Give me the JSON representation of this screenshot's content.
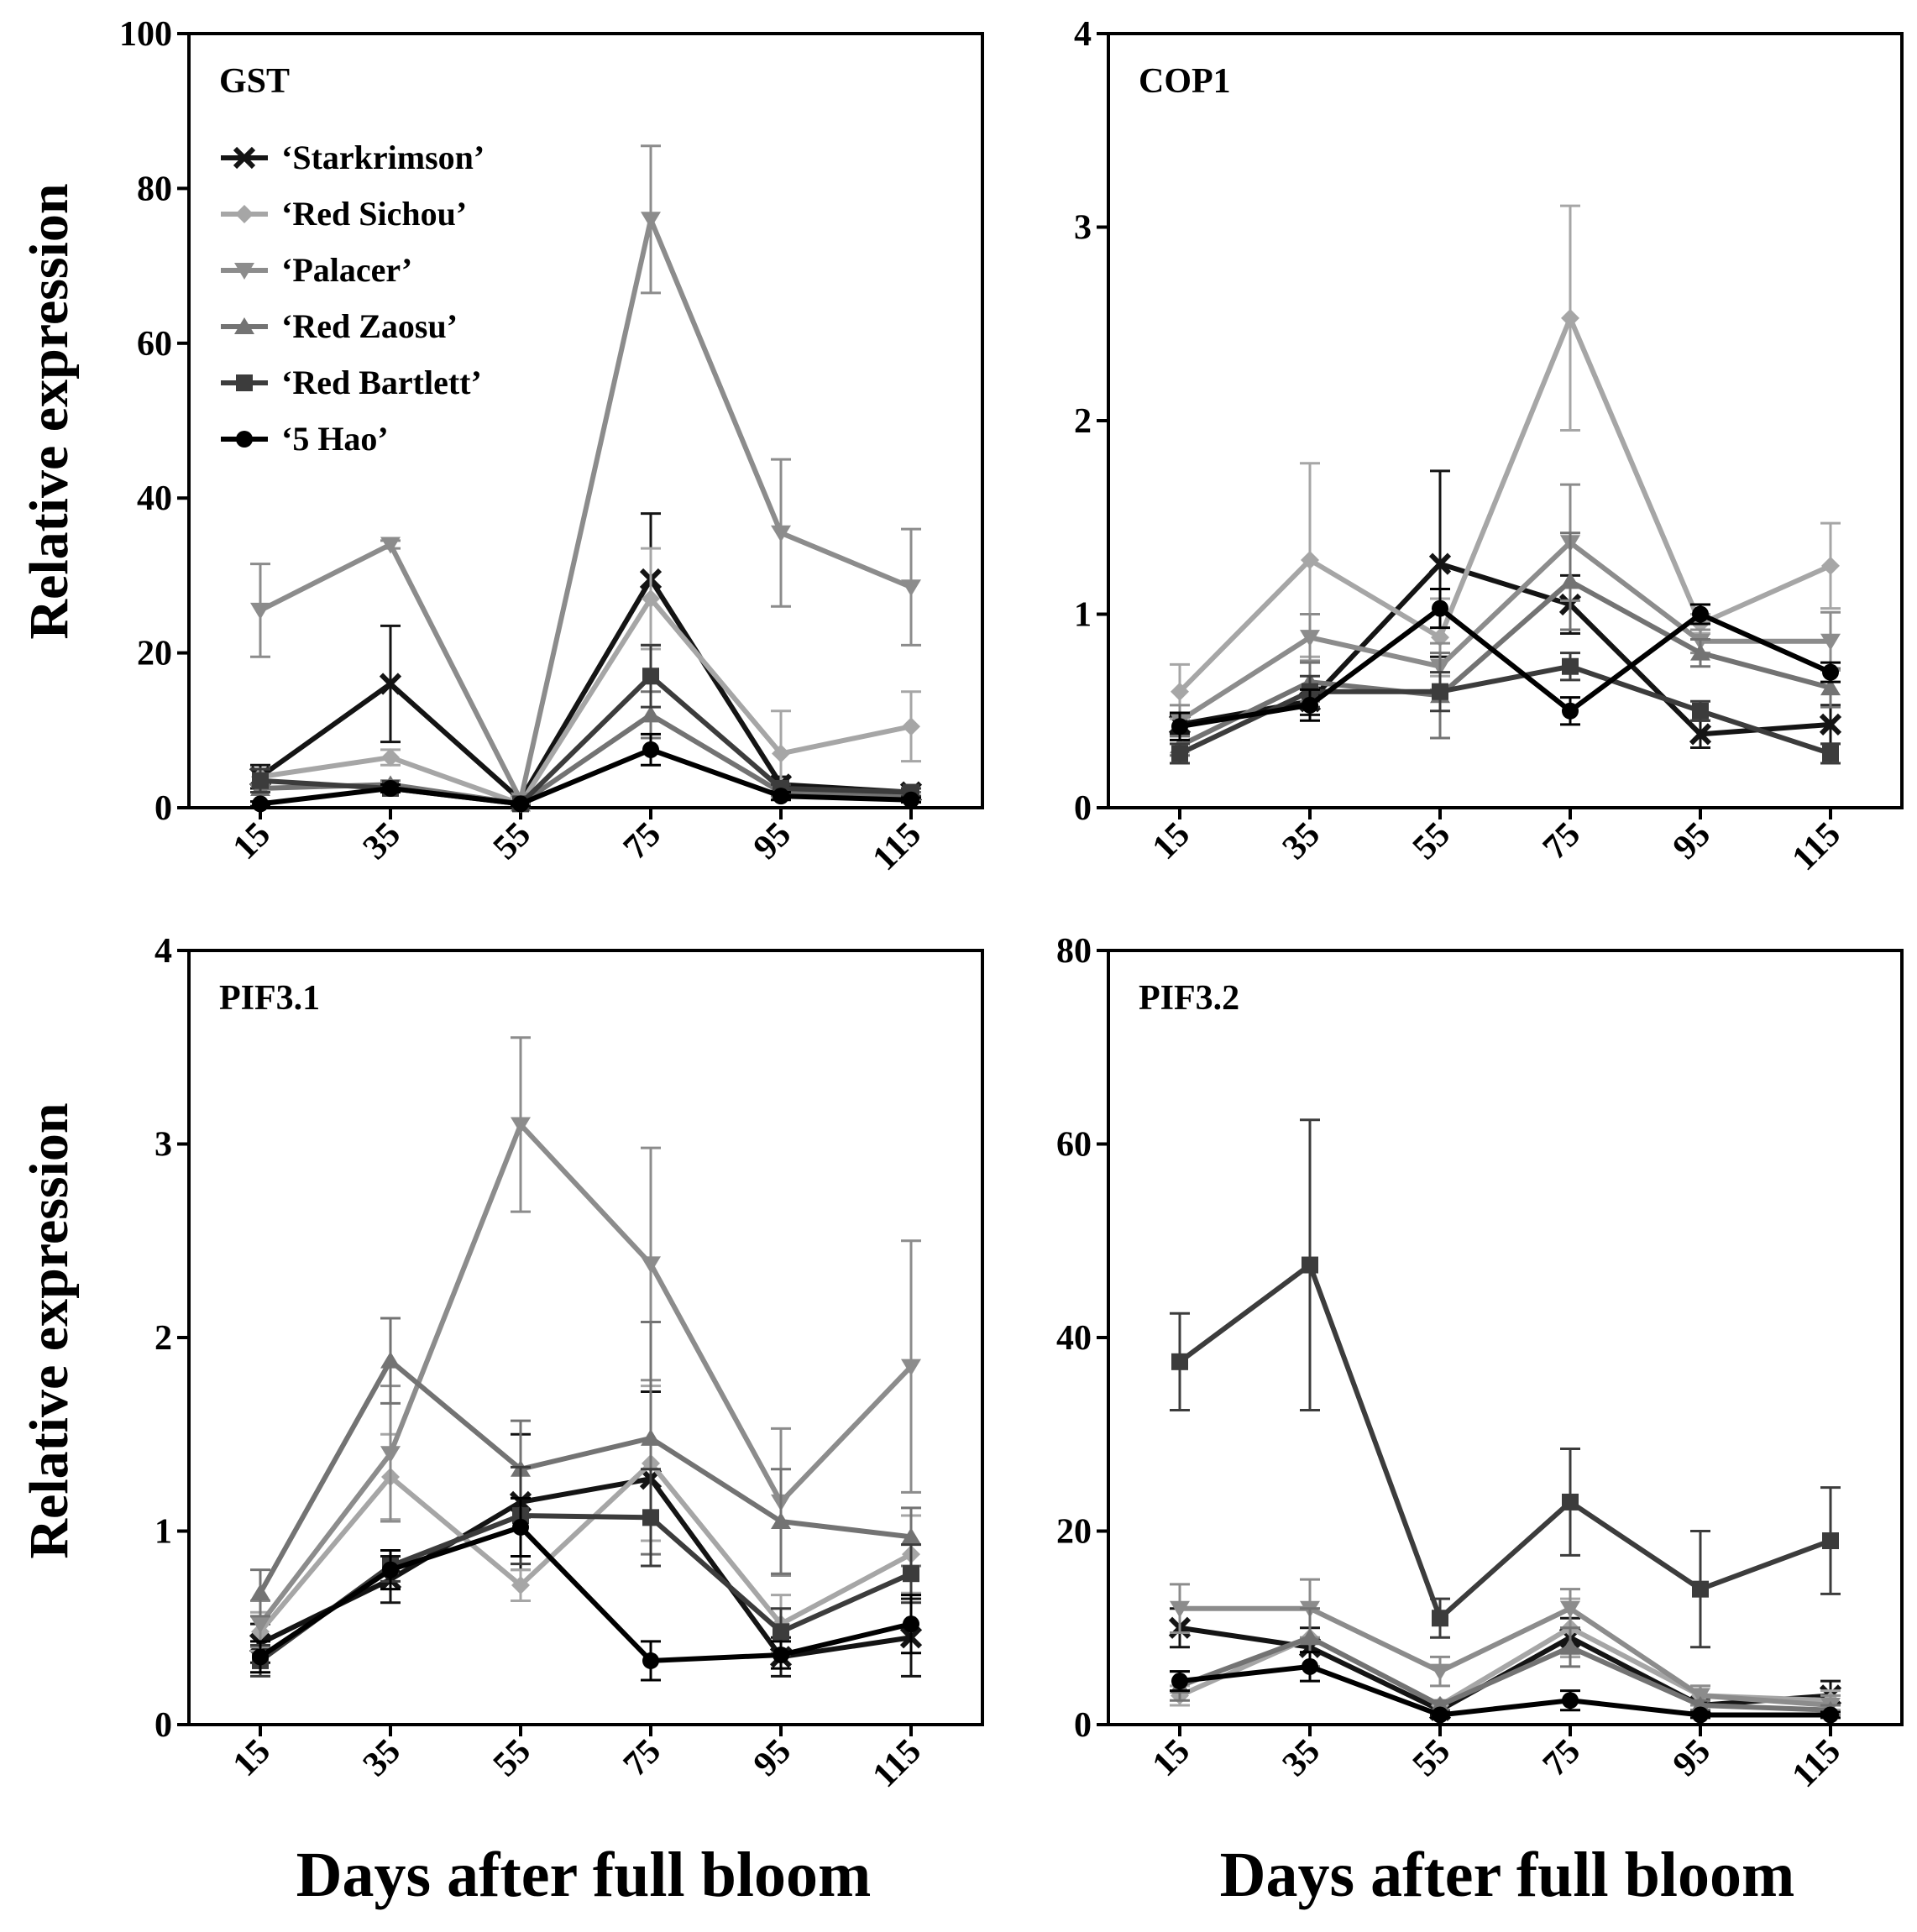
{
  "figure": {
    "ylabel": "Relative expression",
    "xlabel": "Days after full bloom"
  },
  "legend": [
    {
      "label": "‘Starkrimson’",
      "color": "#141414",
      "marker": "x"
    },
    {
      "label": "‘Red Sichou’",
      "color": "#a6a6a6",
      "marker": "diamond"
    },
    {
      "label": "‘Palacer’",
      "color": "#8c8c8c",
      "marker": "triangle-down"
    },
    {
      "label": "‘Red Zaosu’",
      "color": "#737373",
      "marker": "triangle-up"
    },
    {
      "label": "‘Red Bartlett’",
      "color": "#3c3c3c",
      "marker": "square"
    },
    {
      "label": "‘5 Hao’",
      "color": "#000000",
      "marker": "circle"
    }
  ],
  "chart_data": [
    {
      "type": "line",
      "title": "GST",
      "categories": [
        "15",
        "35",
        "55",
        "75",
        "95",
        "115"
      ],
      "ylim": [
        0,
        100
      ],
      "yticks": [
        "0",
        "20",
        "40",
        "60",
        "80",
        "100"
      ],
      "series": [
        {
          "name": "‘Starkrimson’",
          "values": [
            4,
            16,
            1,
            29.5,
            3,
            2
          ],
          "errors": [
            1.5,
            7.5,
            0.5,
            8.5,
            1,
            0.5
          ]
        },
        {
          "name": "‘Red Sichou’",
          "values": [
            4,
            6.5,
            0.5,
            27,
            7,
            10.5
          ],
          "errors": [
            1,
            1,
            0.3,
            6.5,
            5.5,
            4.5
          ]
        },
        {
          "name": "‘Palacer’",
          "values": [
            25.5,
            34,
            1,
            76,
            35.5,
            28.5
          ],
          "errors": [
            6,
            0.5,
            0.5,
            9.5,
            9.5,
            7.5
          ]
        },
        {
          "name": "‘Red Zaosu’",
          "values": [
            2.5,
            3,
            0.5,
            12,
            2,
            1.5
          ],
          "errors": [
            0.5,
            0.5,
            0.3,
            3,
            0.5,
            0.5
          ]
        },
        {
          "name": "‘Red Bartlett’",
          "values": [
            3.5,
            2.5,
            0.5,
            17,
            2.5,
            2
          ],
          "errors": [
            1.5,
            0.5,
            0.3,
            4,
            0.5,
            0.5
          ]
        },
        {
          "name": "‘5 Hao’",
          "values": [
            0.5,
            2.5,
            0.5,
            7.5,
            1.5,
            1
          ],
          "errors": [
            0.3,
            0.5,
            0.3,
            2,
            0.5,
            0.3
          ]
        }
      ]
    },
    {
      "type": "line",
      "title": "COP1",
      "categories": [
        "15",
        "35",
        "55",
        "75",
        "95",
        "115"
      ],
      "ylim": [
        0,
        4
      ],
      "yticks": [
        "0",
        "1",
        "2",
        "3",
        "4"
      ],
      "series": [
        {
          "name": "‘Starkrimson’",
          "values": [
            0.43,
            0.55,
            1.26,
            1.05,
            0.38,
            0.43
          ],
          "errors": [
            0.05,
            0.07,
            0.48,
            0.15,
            0.07,
            0.1
          ]
        },
        {
          "name": "‘Red Sichou’",
          "values": [
            0.6,
            1.28,
            0.88,
            2.53,
            0.95,
            1.25
          ],
          "errors": [
            0.14,
            0.5,
            0.2,
            0.58,
            0.05,
            0.22
          ]
        },
        {
          "name": "‘Palacer’",
          "values": [
            0.45,
            0.88,
            0.73,
            1.37,
            0.86,
            0.86
          ],
          "errors": [
            0.08,
            0.12,
            0.12,
            0.3,
            0.06,
            0.15
          ]
        },
        {
          "name": "‘Red Zaosu’",
          "values": [
            0.32,
            0.65,
            0.58,
            1.17,
            0.8,
            0.62
          ],
          "errors": [
            0.05,
            0.1,
            0.22,
            0.25,
            0.07,
            0.1
          ]
        },
        {
          "name": "‘Red Bartlett’",
          "values": [
            0.28,
            0.6,
            0.6,
            0.73,
            0.5,
            0.28
          ],
          "errors": [
            0.05,
            0.08,
            0.1,
            0.07,
            0.05,
            0.05
          ]
        },
        {
          "name": "‘5 Hao’",
          "values": [
            0.42,
            0.53,
            1.03,
            0.5,
            1.0,
            0.7
          ],
          "errors": [
            0.07,
            0.08,
            0.1,
            0.07,
            0.05,
            0.05
          ]
        }
      ]
    },
    {
      "type": "line",
      "title": "PIF3.1",
      "categories": [
        "15",
        "35",
        "55",
        "75",
        "95",
        "115"
      ],
      "ylim": [
        0,
        4
      ],
      "yticks": [
        "0",
        "1",
        "2",
        "3",
        "4"
      ],
      "series": [
        {
          "name": "‘Starkrimson’",
          "values": [
            0.42,
            0.75,
            1.15,
            1.27,
            0.35,
            0.45
          ],
          "errors": [
            0.1,
            0.12,
            0.35,
            0.45,
            0.1,
            0.2
          ]
        },
        {
          "name": "‘Red Sichou’",
          "values": [
            0.48,
            1.28,
            0.72,
            1.35,
            0.52,
            0.88
          ],
          "errors": [
            0.1,
            0.22,
            0.08,
            0.4,
            0.15,
            0.2
          ]
        },
        {
          "name": "‘Palacer’",
          "values": [
            0.52,
            1.4,
            3.1,
            2.38,
            1.15,
            1.85
          ],
          "errors": [
            0.12,
            0.35,
            0.45,
            0.6,
            0.38,
            0.65
          ]
        },
        {
          "name": "‘Red Zaosu’",
          "values": [
            0.68,
            1.88,
            1.32,
            1.48,
            1.05,
            0.97
          ],
          "errors": [
            0.12,
            0.22,
            0.25,
            0.6,
            0.27,
            0.15
          ]
        },
        {
          "name": "‘Red Bartlett’",
          "values": [
            0.33,
            0.82,
            1.08,
            1.07,
            0.48,
            0.78
          ],
          "errors": [
            0.08,
            0.08,
            0.25,
            0.25,
            0.12,
            0.15
          ]
        },
        {
          "name": "‘5 Hao’",
          "values": [
            0.35,
            0.8,
            1.02,
            0.33,
            0.36,
            0.52
          ],
          "errors": [
            0.08,
            0.1,
            0.15,
            0.1,
            0.07,
            0.15
          ]
        }
      ]
    },
    {
      "type": "line",
      "title": "PIF3.2",
      "categories": [
        "15",
        "35",
        "55",
        "75",
        "95",
        "115"
      ],
      "ylim": [
        0,
        80
      ],
      "yticks": [
        "0",
        "20",
        "40",
        "60",
        "80"
      ],
      "series": [
        {
          "name": "‘Starkrimson’",
          "values": [
            10,
            8,
            1.5,
            9,
            2,
            3
          ],
          "errors": [
            2,
            2,
            0.5,
            2,
            0.5,
            1.5
          ]
        },
        {
          "name": "‘Red Sichou’",
          "values": [
            3,
            9,
            2,
            10,
            3,
            2.5
          ],
          "errors": [
            1,
            3,
            0.5,
            3,
            1,
            1
          ]
        },
        {
          "name": "‘Palacer’",
          "values": [
            12,
            12,
            5.5,
            12,
            3,
            2
          ],
          "errors": [
            2.5,
            3,
            1.5,
            2,
            1,
            1
          ]
        },
        {
          "name": "‘Red Zaosu’",
          "values": [
            4,
            9,
            2,
            8,
            2,
            1.5
          ],
          "errors": [
            1.5,
            3,
            0.5,
            2,
            0.5,
            0.5
          ]
        },
        {
          "name": "‘Red Bartlett’",
          "values": [
            37.5,
            47.5,
            11,
            23,
            14,
            19
          ],
          "errors": [
            5,
            15,
            2,
            5.5,
            6,
            5.5
          ]
        },
        {
          "name": "‘5 Hao’",
          "values": [
            4.5,
            6,
            1,
            2.5,
            1,
            1
          ],
          "errors": [
            1,
            1.5,
            0.3,
            1,
            0.3,
            0.3
          ]
        }
      ]
    }
  ]
}
